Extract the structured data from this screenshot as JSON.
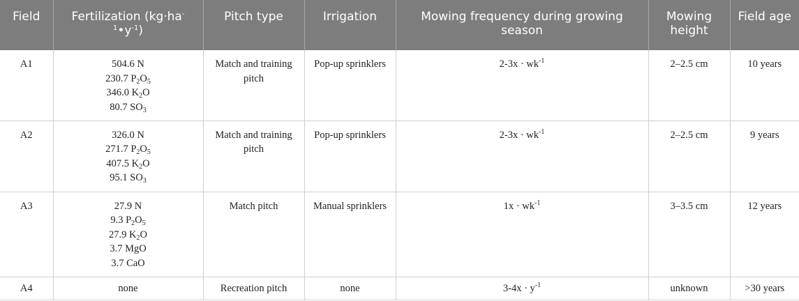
{
  "headers": {
    "field": "Field",
    "fertilization_main": "Fertilization (kg·ha",
    "fertilization_sup1": "-",
    "fertilization_sup2": "1",
    "fertilization_mid": "•y",
    "fertilization_sup3": "-1",
    "fertilization_end": ")",
    "pitch_type": "Pitch type",
    "irrigation": "Irrigation",
    "mowing_frequency": "Mowing frequency during growing season",
    "mowing_height": "Mowing height",
    "field_age": "Field age"
  },
  "rows": [
    {
      "field": "A1",
      "fert": [
        {
          "value": "504.6 N"
        },
        {
          "pre": "230.7 P",
          "sub1": "2",
          "mid": "O",
          "sub2": "5"
        },
        {
          "pre": "346.0 K",
          "sub1": "2",
          "mid": "O",
          "sub2": ""
        },
        {
          "pre": "80.7 SO",
          "sub1": "3",
          "mid": "",
          "sub2": ""
        }
      ],
      "pitch": "Match and training pitch",
      "irrigation": "Pop-up sprinklers",
      "mow_freq": "2-3x · wk",
      "mow_freq_sup": "-1",
      "mow_height": "2–2.5 cm",
      "age": "10 years"
    },
    {
      "field": "A2",
      "fert": [
        {
          "value": "326.0 N"
        },
        {
          "pre": "271.7 P",
          "sub1": "2",
          "mid": "O",
          "sub2": "5"
        },
        {
          "pre": "407.5 K",
          "sub1": "2",
          "mid": "O",
          "sub2": ""
        },
        {
          "pre": "95.1 SO",
          "sub1": "3",
          "mid": "",
          "sub2": ""
        }
      ],
      "pitch": "Match and training pitch",
      "irrigation": "Pop-up sprinklers",
      "mow_freq": "2-3x · wk",
      "mow_freq_sup": "-1",
      "mow_height": "2–2.5 cm",
      "age": "9 years"
    },
    {
      "field": "A3",
      "fert": [
        {
          "value": "27.9 N"
        },
        {
          "pre": "9.3 P",
          "sub1": "2",
          "mid": "O",
          "sub2": "5"
        },
        {
          "pre": "27.9 K",
          "sub1": "2",
          "mid": "O",
          "sub2": ""
        },
        {
          "value": "3.7 MgO"
        },
        {
          "value": "3.7 CaO"
        }
      ],
      "pitch": "Match pitch",
      "irrigation": "Manual sprinklers",
      "mow_freq": "1x · wk",
      "mow_freq_sup": "-1",
      "mow_height": "3–3.5 cm",
      "age": "12 years"
    },
    {
      "field": "A4",
      "fert": [
        {
          "value": "none"
        }
      ],
      "pitch": "Recreation pitch",
      "irrigation": "none",
      "mow_freq": "3-4x · y",
      "mow_freq_sup": "-1",
      "mow_height": "unknown",
      "age": ">30 years"
    }
  ]
}
